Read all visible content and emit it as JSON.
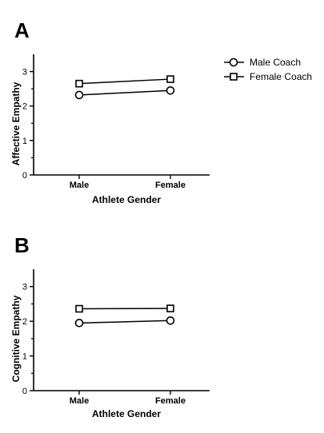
{
  "chart_data": [
    {
      "panel": "A",
      "type": "line",
      "categories": [
        "Male",
        "Female"
      ],
      "xlabel": "Athlete Gender",
      "ylabel": "Affective Empathy",
      "ylim": [
        0,
        3.5
      ],
      "yticks": [
        "0",
        "1",
        "2",
        "3"
      ],
      "series": [
        {
          "name": "Male Coach",
          "marker": "circle",
          "values": [
            2.32,
            2.45
          ],
          "errors": [
            0.06,
            0.06
          ]
        },
        {
          "name": "Female Coach",
          "marker": "square",
          "values": [
            2.65,
            2.78
          ],
          "errors": [
            0.04,
            0.04
          ]
        }
      ],
      "legend": "top-right",
      "grid": false
    },
    {
      "panel": "B",
      "type": "line",
      "categories": [
        "Male",
        "Female"
      ],
      "xlabel": "Athlete Gender",
      "ylabel": "Cognitive Empathy",
      "ylim": [
        0,
        3.5
      ],
      "yticks": [
        "0",
        "1",
        "2",
        "3"
      ],
      "series": [
        {
          "name": "Male Coach",
          "marker": "circle",
          "values": [
            1.95,
            2.02
          ],
          "errors": [
            0.06,
            0.06
          ]
        },
        {
          "name": "Female Coach",
          "marker": "square",
          "values": [
            2.36,
            2.37
          ],
          "errors": [
            0.04,
            0.04
          ]
        }
      ],
      "legend": "none",
      "grid": false
    }
  ],
  "colors": {
    "line": "#000000",
    "background": "#ffffff"
  }
}
